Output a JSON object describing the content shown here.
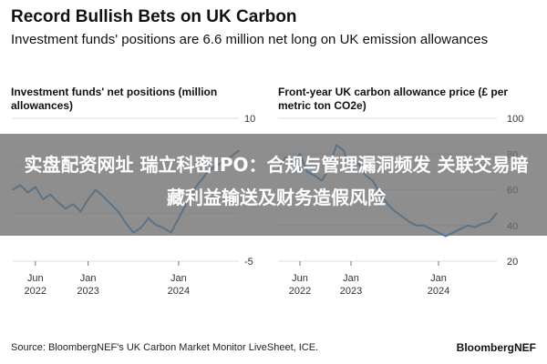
{
  "header": {
    "title": "Record Bullish Bets on UK Carbon",
    "subtitle": "Investment funds' positions are 6.6 million net long on UK emission allowances"
  },
  "overlay": {
    "text": "实盘配资网址 瑞立科密IPO：合规与管理漏洞频发 关联交易暗藏利益输送及财务造假风险"
  },
  "footer": {
    "source": "Source: BloombergNEF's UK Carbon Market Monitor LiveSheet, ICE.",
    "brand": "BloombergNEF"
  },
  "colors": {
    "series": "#1f7fd6",
    "grid": "#dddddd",
    "axis": "#777777",
    "overlay": "#6e6e6e"
  },
  "chart_data": [
    {
      "type": "line",
      "title": "Investment funds' net positions (million allowances)",
      "y_axis_side": "right",
      "ylim": [
        -5,
        10
      ],
      "yticks": [
        10,
        "",
        "",
        -5
      ],
      "xticks": [
        {
          "value": "2022-06",
          "label": [
            "Jun",
            "2022"
          ]
        },
        {
          "value": "2023-01",
          "label": [
            "Jan",
            "2023"
          ]
        },
        {
          "value": "2024-01",
          "label": [
            "Jan",
            "2024"
          ]
        }
      ],
      "xlim": [
        "2022-03",
        "2024-09"
      ],
      "series": [
        {
          "x": [
            "2022-03",
            "2022-04",
            "2022-05",
            "2022-06",
            "2022-07",
            "2022-08",
            "2022-09",
            "2022-10",
            "2022-11",
            "2022-12",
            "2023-01",
            "2023-02",
            "2023-03",
            "2023-04",
            "2023-05",
            "2023-06",
            "2023-07",
            "2023-08",
            "2023-09",
            "2023-10",
            "2023-11",
            "2023-12",
            "2024-01",
            "2024-02",
            "2024-03",
            "2024-04",
            "2024-05",
            "2024-06",
            "2024-07",
            "2024-08",
            "2024-09"
          ],
          "y": [
            2.5,
            3.0,
            2.2,
            2.8,
            1.5,
            2.0,
            1.2,
            0.5,
            1.0,
            0.2,
            1.5,
            2.5,
            1.8,
            1.0,
            0.2,
            -1.0,
            -2.0,
            -1.5,
            -0.5,
            -1.2,
            -1.5,
            -2.0,
            -0.5,
            1.0,
            2.5,
            3.5,
            4.5,
            5.0,
            5.5,
            6.0,
            6.6
          ]
        }
      ]
    },
    {
      "type": "line",
      "title": "Front-year UK carbon allowance price (£ per metric ton CO2e)",
      "y_axis_side": "right",
      "ylim": [
        20,
        100
      ],
      "yticks": [
        100,
        80,
        60,
        40,
        20
      ],
      "xticks": [
        {
          "value": "2022-06",
          "label": [
            "Jun",
            "2022"
          ]
        },
        {
          "value": "2023-01",
          "label": [
            "Jan",
            "2023"
          ]
        },
        {
          "value": "2024-01",
          "label": [
            "Jan",
            "2024"
          ]
        }
      ],
      "xlim": [
        "2022-03",
        "2024-09"
      ],
      "series": [
        {
          "x": [
            "2022-03",
            "2022-04",
            "2022-05",
            "2022-06",
            "2022-07",
            "2022-08",
            "2022-09",
            "2022-10",
            "2022-11",
            "2022-12",
            "2023-01",
            "2023-02",
            "2023-03",
            "2023-04",
            "2023-05",
            "2023-06",
            "2023-07",
            "2023-08",
            "2023-09",
            "2023-10",
            "2023-11",
            "2023-12",
            "2024-01",
            "2024-02",
            "2024-03",
            "2024-04",
            "2024-05",
            "2024-06",
            "2024-07",
            "2024-08",
            "2024-09"
          ],
          "y": [
            72,
            78,
            75,
            80,
            70,
            68,
            65,
            72,
            85,
            82,
            70,
            75,
            68,
            65,
            58,
            52,
            48,
            45,
            42,
            40,
            40,
            38,
            36,
            34,
            36,
            38,
            40,
            39,
            41,
            42,
            47
          ]
        }
      ]
    }
  ]
}
